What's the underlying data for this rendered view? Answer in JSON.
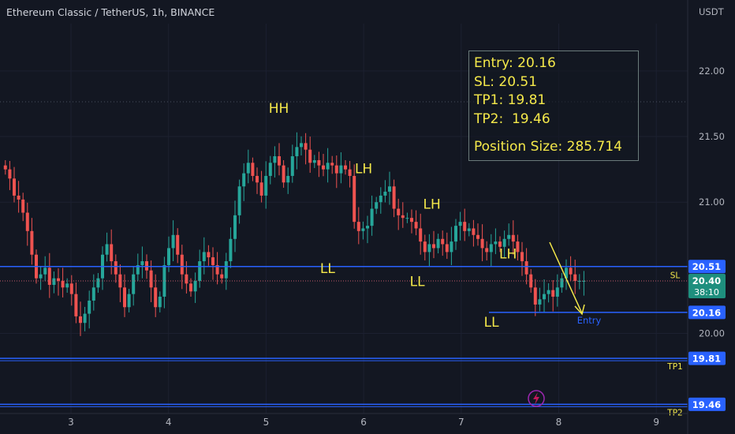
{
  "header": {
    "symbol_title": "Ethereum Classic / TetherUS, 1h, BINANCE",
    "axis_unit": "USDT"
  },
  "trade_box": {
    "entry": "Entry: 20.16",
    "sl": "SL: 20.51",
    "tp1": "TP1: 19.81",
    "tp2": "TP2:  19.46",
    "position_size": "Position Size: 285.714"
  },
  "chart_data": {
    "type": "candlestick",
    "x_ticks": [
      "3",
      "4",
      "5",
      "6",
      "7",
      "8",
      "9"
    ],
    "y_ticks": [
      "22.00",
      "21.50",
      "21.00",
      "20.00"
    ],
    "ylim": [
      19.39,
      22.36
    ],
    "price_labels": {
      "sl": "20.51",
      "current": "20.40",
      "countdown": "38:10",
      "entry": "20.16",
      "tp1": "19.81",
      "tp2": "19.46"
    },
    "levels": [
      {
        "name": "SL",
        "value": 20.51,
        "label": "SL"
      },
      {
        "name": "Entry",
        "value": 20.16,
        "label": "Entry"
      },
      {
        "name": "TP1",
        "value": 19.81,
        "label": "TP1"
      },
      {
        "name": "TP2",
        "value": 19.46,
        "label": "TP2"
      }
    ],
    "annotations": [
      {
        "text": "HH",
        "x": 5.13,
        "y": 21.68
      },
      {
        "text": "LH",
        "x": 6.0,
        "y": 21.22
      },
      {
        "text": "LH",
        "x": 6.7,
        "y": 20.95
      },
      {
        "text": "LH",
        "x": 7.48,
        "y": 20.57
      },
      {
        "text": "LL",
        "x": 5.63,
        "y": 20.46
      },
      {
        "text": "LL",
        "x": 6.55,
        "y": 20.36
      },
      {
        "text": "LL",
        "x": 7.31,
        "y": 20.05
      }
    ],
    "closes": [
      21.25,
      21.18,
      21.05,
      21.02,
      20.92,
      20.78,
      20.6,
      20.42,
      20.45,
      20.5,
      20.37,
      20.42,
      20.4,
      20.35,
      20.38,
      20.3,
      20.13,
      20.08,
      20.15,
      20.25,
      20.35,
      20.42,
      20.6,
      20.68,
      20.55,
      20.45,
      20.35,
      20.2,
      20.3,
      20.45,
      20.52,
      20.55,
      20.48,
      20.35,
      20.2,
      20.28,
      20.52,
      20.65,
      20.75,
      20.6,
      20.45,
      20.38,
      20.32,
      20.4,
      20.55,
      20.62,
      20.58,
      20.52,
      20.45,
      20.42,
      20.55,
      20.72,
      20.9,
      21.12,
      21.22,
      21.3,
      21.2,
      21.15,
      21.05,
      21.2,
      21.3,
      21.35,
      21.28,
      21.15,
      21.2,
      21.35,
      21.42,
      21.45,
      21.4,
      21.3,
      21.32,
      21.28,
      21.25,
      21.3,
      21.28,
      21.22,
      21.28,
      21.25,
      21.2,
      20.85,
      20.78,
      20.8,
      20.82,
      20.95,
      21.0,
      21.05,
      21.08,
      21.12,
      20.95,
      20.9,
      20.88,
      20.88,
      20.85,
      20.8,
      20.7,
      20.62,
      20.68,
      20.65,
      20.72,
      20.68,
      20.62,
      20.7,
      20.82,
      20.85,
      20.78,
      20.8,
      20.75,
      20.72,
      20.65,
      20.62,
      20.68,
      20.7,
      20.66,
      20.72,
      20.75,
      20.7,
      20.62,
      20.55,
      20.45,
      20.35,
      20.22,
      20.26,
      20.3,
      20.33,
      20.28,
      20.35,
      20.42,
      20.5,
      20.45,
      20.4,
      20.4,
      20.4
    ]
  }
}
